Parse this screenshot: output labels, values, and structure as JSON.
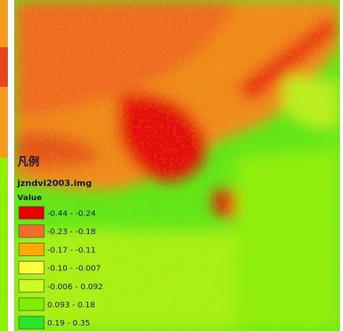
{
  "legend": {
    "title": "凡例",
    "layer": "jzndvi2003.img",
    "field": "Value",
    "items": [
      {
        "label": "-0.44 - -0.24",
        "color": "#e60000"
      },
      {
        "label": "-0.23 - -0.18",
        "color": "#f26c2a"
      },
      {
        "label": "-0.17 - -0.11",
        "color": "#ffaa00"
      },
      {
        "label": "-0.10 - -0.007",
        "color": "#ffff3c"
      },
      {
        "label": "-0.006 - 0.092",
        "color": "#ccff1e"
      },
      {
        "label": "0.093 - 0.18",
        "color": "#7cf000"
      },
      {
        "label": "0.19 - 0.35",
        "color": "#28e628"
      }
    ]
  }
}
